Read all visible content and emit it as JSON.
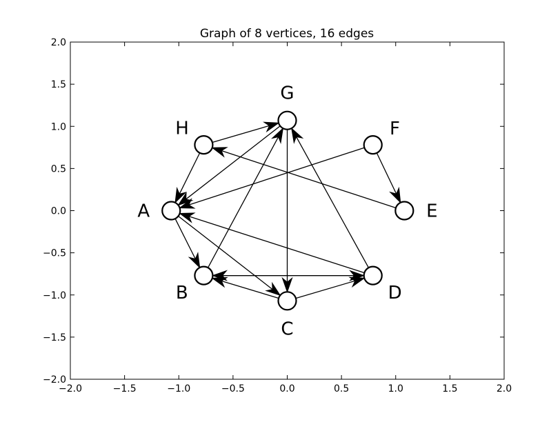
{
  "chart_data": {
    "type": "graph",
    "title": "Graph of 8 vertices, 16 edges",
    "xlim": [
      -2.0,
      2.0
    ],
    "ylim": [
      -2.0,
      2.0
    ],
    "xticks": [
      "−2.0",
      "−1.5",
      "−1.0",
      "−0.5",
      "0.0",
      "0.5",
      "1.0",
      "1.5",
      "2.0"
    ],
    "yticks": [
      "−2.0",
      "−1.5",
      "−1.0",
      "−0.5",
      "0.0",
      "0.5",
      "1.0",
      "1.5",
      "2.0"
    ],
    "xtick_values": [
      -2.0,
      -1.5,
      -1.0,
      -0.5,
      0.0,
      0.5,
      1.0,
      1.5,
      2.0
    ],
    "ytick_values": [
      -2.0,
      -1.5,
      -1.0,
      -0.5,
      0.0,
      0.5,
      1.0,
      1.5,
      2.0
    ],
    "grid": false,
    "directed": true,
    "nodes": [
      {
        "id": "A",
        "label": "A",
        "x": -1.07,
        "y": 0.0
      },
      {
        "id": "B",
        "label": "B",
        "x": -0.77,
        "y": -0.77
      },
      {
        "id": "C",
        "label": "C",
        "x": 0.0,
        "y": -1.07
      },
      {
        "id": "D",
        "label": "D",
        "x": 0.79,
        "y": -0.77
      },
      {
        "id": "E",
        "label": "E",
        "x": 1.08,
        "y": 0.0
      },
      {
        "id": "F",
        "label": "F",
        "x": 0.79,
        "y": 0.78
      },
      {
        "id": "G",
        "label": "G",
        "x": 0.0,
        "y": 1.07
      },
      {
        "id": "H",
        "label": "H",
        "x": -0.77,
        "y": 0.78
      }
    ],
    "edges": [
      {
        "from": "H",
        "to": "G"
      },
      {
        "from": "H",
        "to": "A"
      },
      {
        "from": "E",
        "to": "H"
      },
      {
        "from": "F",
        "to": "A"
      },
      {
        "from": "F",
        "to": "E"
      },
      {
        "from": "G",
        "to": "A"
      },
      {
        "from": "G",
        "to": "C"
      },
      {
        "from": "A",
        "to": "B"
      },
      {
        "from": "A",
        "to": "C"
      },
      {
        "from": "D",
        "to": "A"
      },
      {
        "from": "B",
        "to": "G"
      },
      {
        "from": "D",
        "to": "G"
      },
      {
        "from": "B",
        "to": "D"
      },
      {
        "from": "D",
        "to": "B"
      },
      {
        "from": "C",
        "to": "B"
      },
      {
        "from": "C",
        "to": "D"
      }
    ]
  }
}
